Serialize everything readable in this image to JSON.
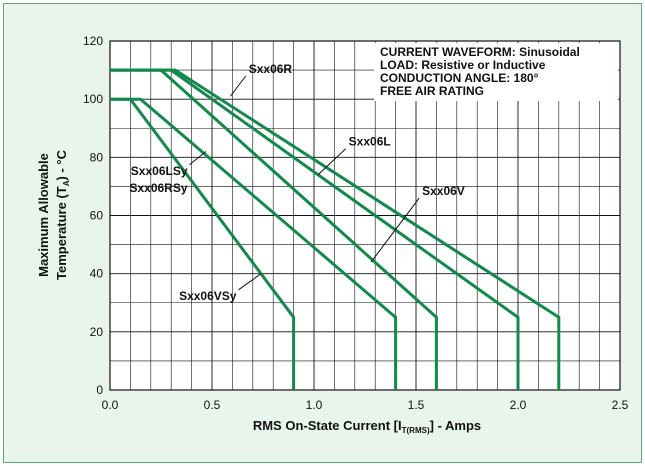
{
  "chart_data": {
    "type": "line",
    "title": "",
    "xlabel": {
      "main": "RMS On-State Current [I",
      "sub": "T(RMS)",
      "tail": "] - Amps"
    },
    "ylabel": {
      "line1": "Maximum Allowable",
      "line2_main": "Temperature (T",
      "line2_sub": "A",
      "line2_tail": ") - °C"
    },
    "xlim": [
      0,
      2.5
    ],
    "ylim": [
      0,
      120
    ],
    "x_ticks": [
      "0.0",
      "0.5",
      "1.0",
      "1.5",
      "2.0",
      "2.5"
    ],
    "x_tick_values": [
      0,
      0.5,
      1.0,
      1.5,
      2.0,
      2.5
    ],
    "y_ticks": [
      "0",
      "20",
      "40",
      "60",
      "80",
      "100",
      "120"
    ],
    "y_tick_values": [
      0,
      20,
      40,
      60,
      80,
      100,
      120
    ],
    "grid": true,
    "line_color": "#118a4c",
    "series": [
      {
        "name": "Sxx06VSy",
        "x": [
          0,
          0.1,
          0.9,
          0.9
        ],
        "y": [
          100,
          100,
          25,
          0
        ]
      },
      {
        "name": "Sxx06LSy / Sxx06RSy",
        "x": [
          0,
          0.15,
          1.4,
          1.4
        ],
        "y": [
          100,
          100,
          25,
          0
        ]
      },
      {
        "name": "Sxx06V",
        "x": [
          0,
          0.25,
          1.6,
          1.6
        ],
        "y": [
          110,
          110,
          25,
          0
        ]
      },
      {
        "name": "Sxx06L",
        "x": [
          0,
          0.3,
          2.0,
          2.0
        ],
        "y": [
          110,
          110,
          25,
          0
        ]
      },
      {
        "name": "Sxx06R",
        "x": [
          0,
          0.32,
          2.2,
          2.2
        ],
        "y": [
          110,
          110,
          25,
          0
        ]
      }
    ],
    "info_box": [
      "CURRENT WAVEFORM: Sinusoidal",
      "LOAD: Resistive or Inductive",
      "CONDUCTION ANGLE: 180°",
      "FREE AIR RATING"
    ],
    "annotations": [
      {
        "text": "Sxx06R",
        "target": {
          "x": 0.59,
          "y": 101
        },
        "label_at": {
          "x": 0.68,
          "y": 109
        }
      },
      {
        "text": "Sxx06L",
        "target": {
          "x": 1.02,
          "y": 74
        },
        "label_at": {
          "x": 1.17,
          "y": 84
        }
      },
      {
        "text": "Sxx06V",
        "target": {
          "x": 1.28,
          "y": 44
        },
        "label_at": {
          "x": 1.53,
          "y": 67
        }
      },
      {
        "text": "Sxx06LSy",
        "target": {
          "x": 0.47,
          "y": 82
        },
        "label_at": {
          "x": 0.38,
          "y": 74
        }
      },
      {
        "text": "Sxx06RSy",
        "target": null,
        "label_at": {
          "x": 0.38,
          "y": 68
        }
      },
      {
        "text": "Sxx06VSy",
        "target": {
          "x": 0.74,
          "y": 40
        },
        "label_at": {
          "x": 0.62,
          "y": 31
        }
      }
    ]
  }
}
